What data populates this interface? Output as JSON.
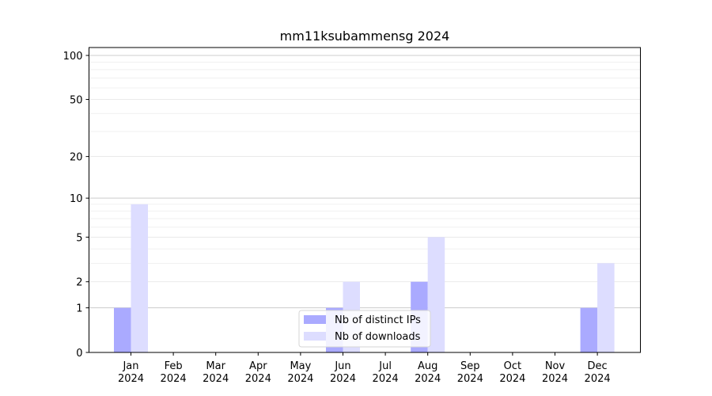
{
  "chart_data": {
    "type": "bar",
    "title": "mm11ksubammensg 2024",
    "xlabel": "",
    "ylabel": "",
    "yscale": "log1p",
    "ylim": [
      0,
      100
    ],
    "y_ticks": [
      0,
      1,
      2,
      5,
      10,
      20,
      50,
      100
    ],
    "categories": [
      [
        "Jan",
        "2024"
      ],
      [
        "Feb",
        "2024"
      ],
      [
        "Mar",
        "2024"
      ],
      [
        "Apr",
        "2024"
      ],
      [
        "May",
        "2024"
      ],
      [
        "Jun",
        "2024"
      ],
      [
        "Jul",
        "2024"
      ],
      [
        "Aug",
        "2024"
      ],
      [
        "Sep",
        "2024"
      ],
      [
        "Oct",
        "2024"
      ],
      [
        "Nov",
        "2024"
      ],
      [
        "Dec",
        "2024"
      ]
    ],
    "series": [
      {
        "name": "Nb of distinct IPs",
        "color": "#aaaaff",
        "values": [
          1,
          0,
          0,
          0,
          0,
          1,
          0,
          2,
          0,
          0,
          0,
          1
        ]
      },
      {
        "name": "Nb of downloads",
        "color": "#ddddff",
        "values": [
          9,
          0,
          0,
          0,
          0,
          2,
          0,
          5,
          0,
          0,
          0,
          3
        ]
      }
    ],
    "legend_position": "bottom-center",
    "grid": true
  }
}
